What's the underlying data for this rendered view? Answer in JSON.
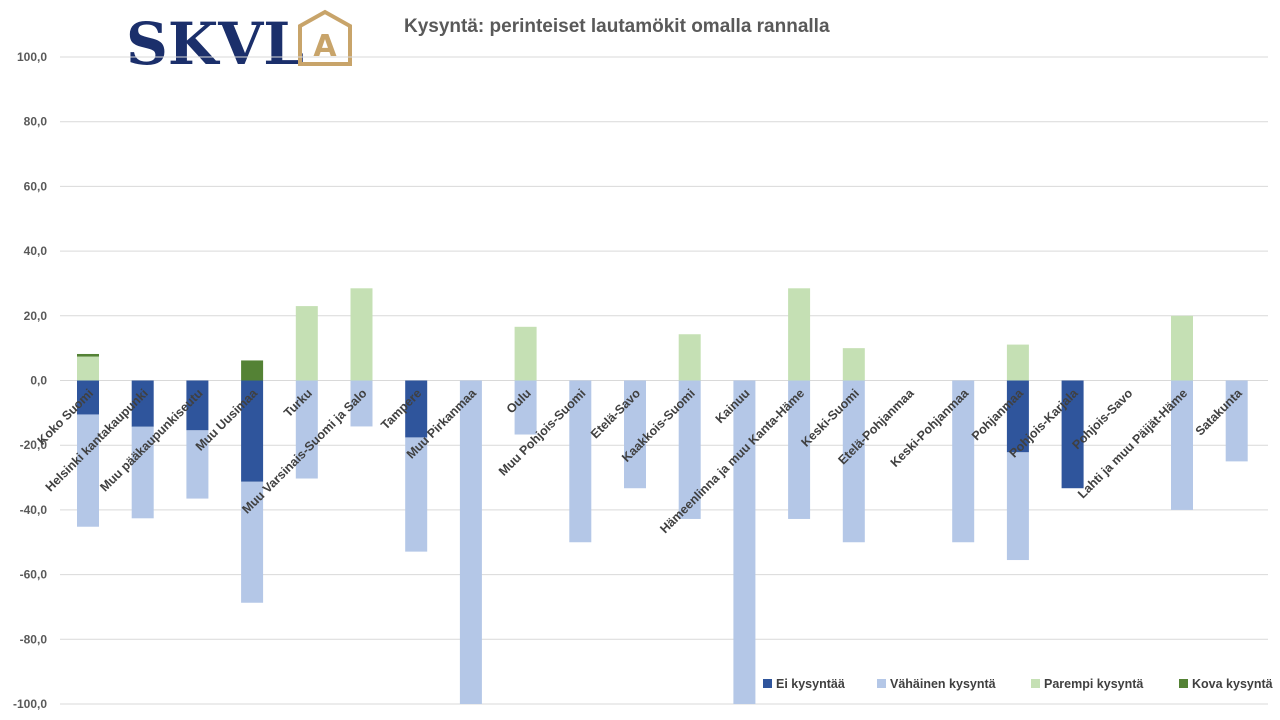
{
  "logo": {
    "text": "SKVL",
    "badge_letter": "A",
    "text_color": "#1b2f6b",
    "badge_color": "#c8a46a"
  },
  "chart_data": {
    "type": "bar",
    "stacked": true,
    "title": "Kysyntä: perinteiset lautamökit omalla rannalla",
    "xlabel": "",
    "ylabel": "",
    "ylim": [
      -100,
      100
    ],
    "yticks": [
      100,
      80,
      60,
      40,
      20,
      0,
      -20,
      -40,
      -60,
      -80,
      -100
    ],
    "ytick_labels": [
      "100,0",
      "80,0",
      "60,0",
      "40,0",
      "20,0",
      "0,0",
      "-20,0",
      "-40,0",
      "-60,0",
      "-80,0",
      "-100,0"
    ],
    "grid": true,
    "legend_position": "bottom-right",
    "categories": [
      "Koko Suomi",
      "Helsinki kantakaupunki",
      "Muu pääkaupunkiseutu",
      "Muu Uusimaa",
      "Turku",
      "Muu Varsinais-Suomi ja Salo",
      "Tampere",
      "Muu Pirkanmaa",
      "Oulu",
      "Muu Pohjois-Suomi",
      "Etelä-Savo",
      "Kaakkois-Suomi",
      "Kainuu",
      "Hämeenlinna ja muu Kanta-Häme",
      "Keski-Suomi",
      "Etelä-Pohjanmaa",
      "Keski-Pohjanmaa",
      "Pohjanmaa",
      "Pohjois-Karjala",
      "Pohjois-Savo",
      "Lahti ja muu Päijät-Häme",
      "Satakunta"
    ],
    "series": [
      {
        "name": "Ei kysyntää",
        "color": "#2f559c",
        "values": [
          -10.5,
          -14.3,
          -15.4,
          -31.3,
          0,
          0,
          -17.6,
          0,
          0,
          0,
          0,
          0,
          0,
          0,
          0,
          0,
          0,
          -22.2,
          -33.3,
          0,
          0,
          0
        ]
      },
      {
        "name": "Vähäinen kysyntä",
        "color": "#b4c7e7",
        "values": [
          -34.7,
          -28.3,
          -21.1,
          -37.4,
          -30.3,
          -14.2,
          -35.3,
          -100,
          -16.7,
          -50,
          -33.3,
          -42.8,
          -100,
          -42.8,
          -50,
          0,
          -50,
          -33.3,
          0,
          0,
          -40,
          -25
        ]
      },
      {
        "name": "Parempi kysyntä",
        "color": "#c5e0b4",
        "values": [
          7.4,
          0,
          0,
          0,
          23,
          28.5,
          0,
          0,
          16.6,
          0,
          0,
          14.3,
          0,
          28.5,
          10,
          0,
          0,
          11.1,
          0,
          0,
          20,
          0
        ]
      },
      {
        "name": "Kova kysyntä",
        "color": "#548235",
        "values": [
          0.8,
          0,
          0,
          6.2,
          0,
          0,
          0,
          0,
          0,
          0,
          0,
          0,
          0,
          0,
          0,
          0,
          0,
          0,
          0,
          0,
          0,
          0
        ]
      }
    ]
  }
}
